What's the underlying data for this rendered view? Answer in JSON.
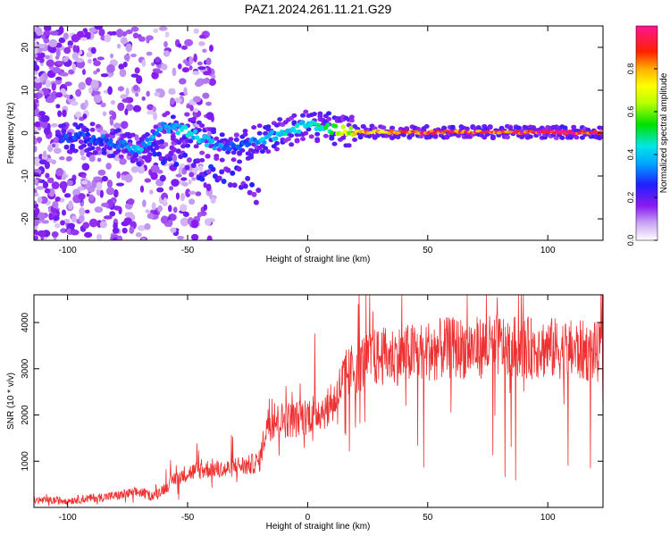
{
  "title": "PAZ1.2024.261.11.21.G29",
  "chart_data": [
    {
      "type": "heatmap",
      "title": "PAZ1.2024.261.11.21.G29",
      "xlabel": "Height of straight line (km)",
      "ylabel": "Frequency (Hz)",
      "xlim": [
        -114,
        123
      ],
      "ylim": [
        -25,
        25
      ],
      "x_ticks": [
        -100,
        -50,
        0,
        50,
        100
      ],
      "x_tick_labels": [
        "-100",
        "-50",
        "0",
        "50",
        "100"
      ],
      "y_ticks": [
        -20,
        -10,
        0,
        10,
        20
      ],
      "y_tick_labels": [
        "-20",
        "-10",
        "0",
        "10",
        "20"
      ],
      "colorbar": {
        "label": "Normalized spectral amplitude",
        "range": [
          0,
          1
        ],
        "ticks": [
          0,
          0.2,
          0.4,
          0.6,
          0.8
        ],
        "tick_labels": [
          "0.0",
          "0.2",
          "0.4",
          "0.6",
          "0.8"
        ],
        "colormap": "white-violet-blue-cyan-green-yellow-orange-red-magenta"
      },
      "ridge": {
        "x": [
          -90,
          -80,
          -70,
          -60,
          -50,
          -40,
          -30,
          -20,
          -10,
          0,
          10,
          20,
          40,
          60,
          80,
          100,
          123
        ],
        "frequency": [
          -1.0,
          -2.5,
          -4.0,
          1.5,
          0.5,
          -2.5,
          -3.5,
          -1.5,
          0.0,
          2.0,
          1.0,
          0.3,
          0.2,
          0.3,
          0.2,
          0.2,
          0.2
        ],
        "amplitude": [
          0.3,
          0.35,
          0.4,
          0.35,
          0.45,
          0.4,
          0.3,
          0.4,
          0.45,
          0.45,
          0.55,
          0.8,
          0.9,
          0.95,
          0.95,
          1.0,
          1.0
        ]
      },
      "branch": {
        "x": [
          -70,
          -60,
          -50,
          -40,
          -30,
          -25,
          -20
        ],
        "frequency": [
          -5,
          -5,
          -7,
          -10,
          -10,
          -13,
          -16
        ]
      },
      "grid": false
    },
    {
      "type": "line",
      "xlabel": "Height of straight line (km)",
      "ylabel": "SNR (10 * v/v)",
      "xlim": [
        -114,
        123
      ],
      "ylim": [
        0,
        4600
      ],
      "x_ticks": [
        -100,
        -50,
        0,
        50,
        100
      ],
      "x_tick_labels": [
        "-100",
        "-50",
        "0",
        "50",
        "100"
      ],
      "y_ticks": [
        1000,
        2000,
        3000,
        4000
      ],
      "y_tick_labels": [
        "1000",
        "2000",
        "3000",
        "4000"
      ],
      "color": "#ee3030",
      "series": [
        {
          "x": [
            -114,
            -100,
            -90,
            -80,
            -70,
            -65,
            -60,
            -55,
            -50,
            -45,
            -40,
            -35,
            -30,
            -25,
            -20,
            -17,
            -10,
            -5,
            0,
            5,
            10,
            15,
            20,
            25,
            30,
            40,
            50,
            60,
            70,
            80,
            90,
            100,
            110,
            123
          ],
          "values": [
            150,
            150,
            200,
            250,
            330,
            250,
            400,
            650,
            750,
            800,
            850,
            800,
            900,
            900,
            1000,
            1800,
            1900,
            1900,
            2000,
            2100,
            2150,
            2800,
            3050,
            3200,
            3250,
            3300,
            3400,
            3450,
            3450,
            3500,
            3450,
            3450,
            3400,
            3350
          ]
        }
      ],
      "grid": false
    }
  ]
}
